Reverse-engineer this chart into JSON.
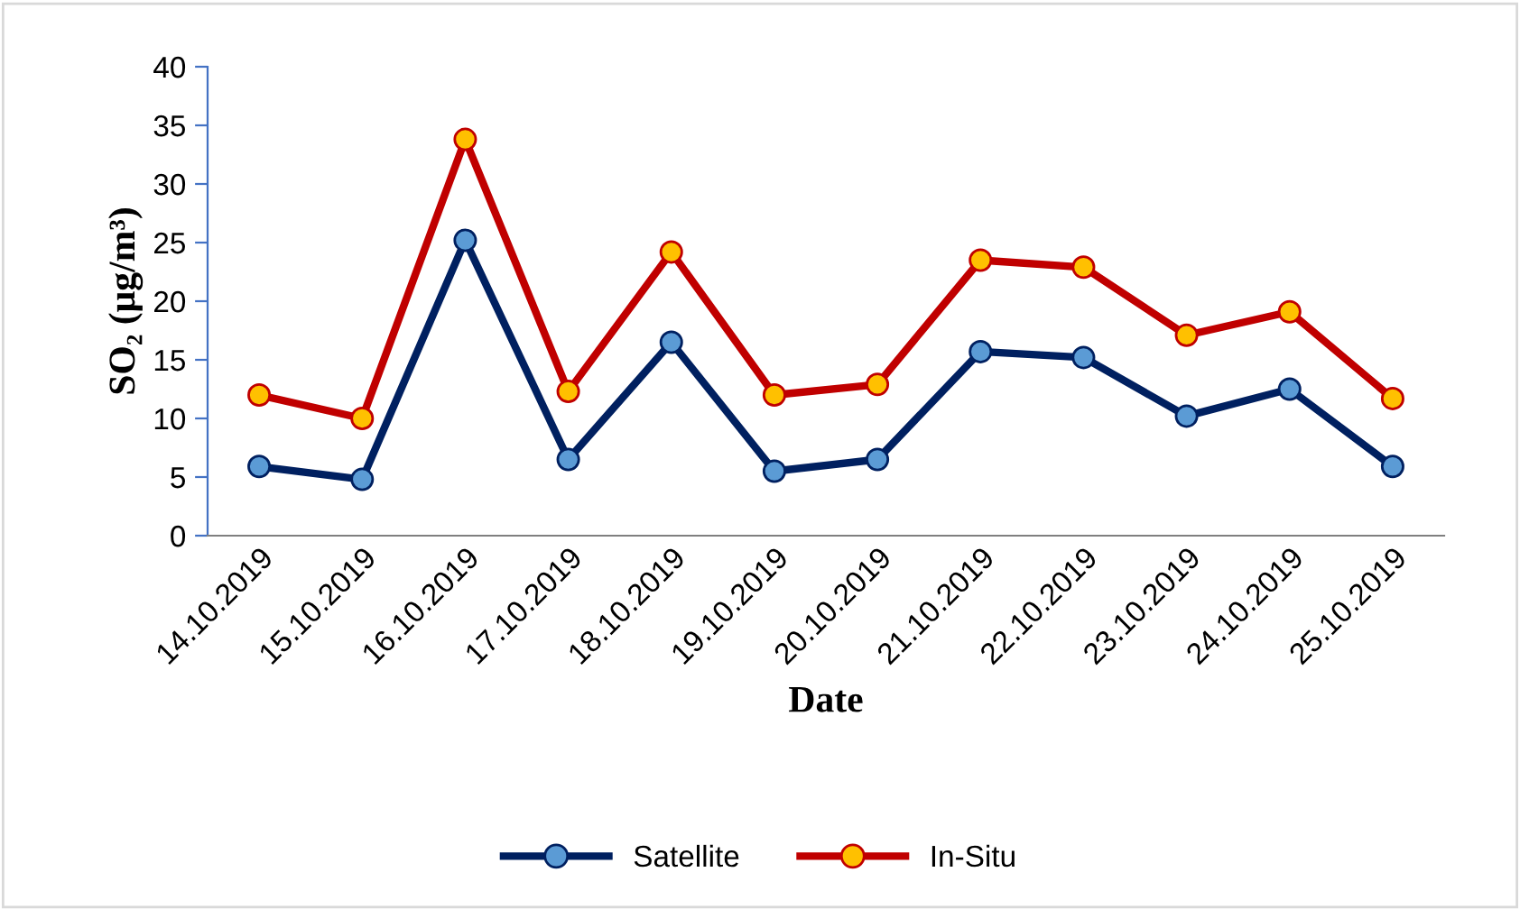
{
  "chart_data": {
    "type": "line",
    "xlabel": "Date",
    "ylabel": "SO₂ (μg/m³)",
    "categories": [
      "14.10.2019",
      "15.10.2019",
      "16.10.2019",
      "17.10.2019",
      "18.10.2019",
      "19.10.2019",
      "20.10.2019",
      "21.10.2019",
      "22.10.2019",
      "23.10.2019",
      "24.10.2019",
      "25.10.2019"
    ],
    "series": [
      {
        "name": "Satellite",
        "color": "#002060",
        "colors": [
          "#5b9bd5",
          "#5b9bd5",
          "#5b9bd5",
          "#5b9bd5",
          "#5b9bd5",
          "#5b9bd5",
          "#5b9bd5",
          "#5b9bd5",
          "#5b9bd5",
          "#5b9bd5",
          "#5b9bd5",
          "#5b9bd5"
        ],
        "values": [
          5.9,
          4.8,
          25.2,
          6.5,
          16.5,
          5.5,
          6.5,
          15.7,
          15.2,
          10.2,
          12.5,
          5.9
        ]
      },
      {
        "name": "In-Situ",
        "color": "#c00000",
        "colors": [
          "#ffc000",
          "#ffc000",
          "#ffc000",
          "#ffc000",
          "#ffc000",
          "#ffc000",
          "#ffc000",
          "#ffc000",
          "#ffc000",
          "#ffc000",
          "#ffc000",
          "#ffc000"
        ],
        "values": [
          12.0,
          10.0,
          33.8,
          12.3,
          24.2,
          12.0,
          12.9,
          23.5,
          22.9,
          17.1,
          19.1,
          11.7
        ]
      }
    ],
    "ylim": [
      0,
      40
    ],
    "yticks": [
      0,
      5,
      10,
      15,
      20,
      25,
      30,
      35,
      40
    ],
    "grid": false,
    "legend": "bottom",
    "marker": "circle",
    "line_style": "solid"
  }
}
